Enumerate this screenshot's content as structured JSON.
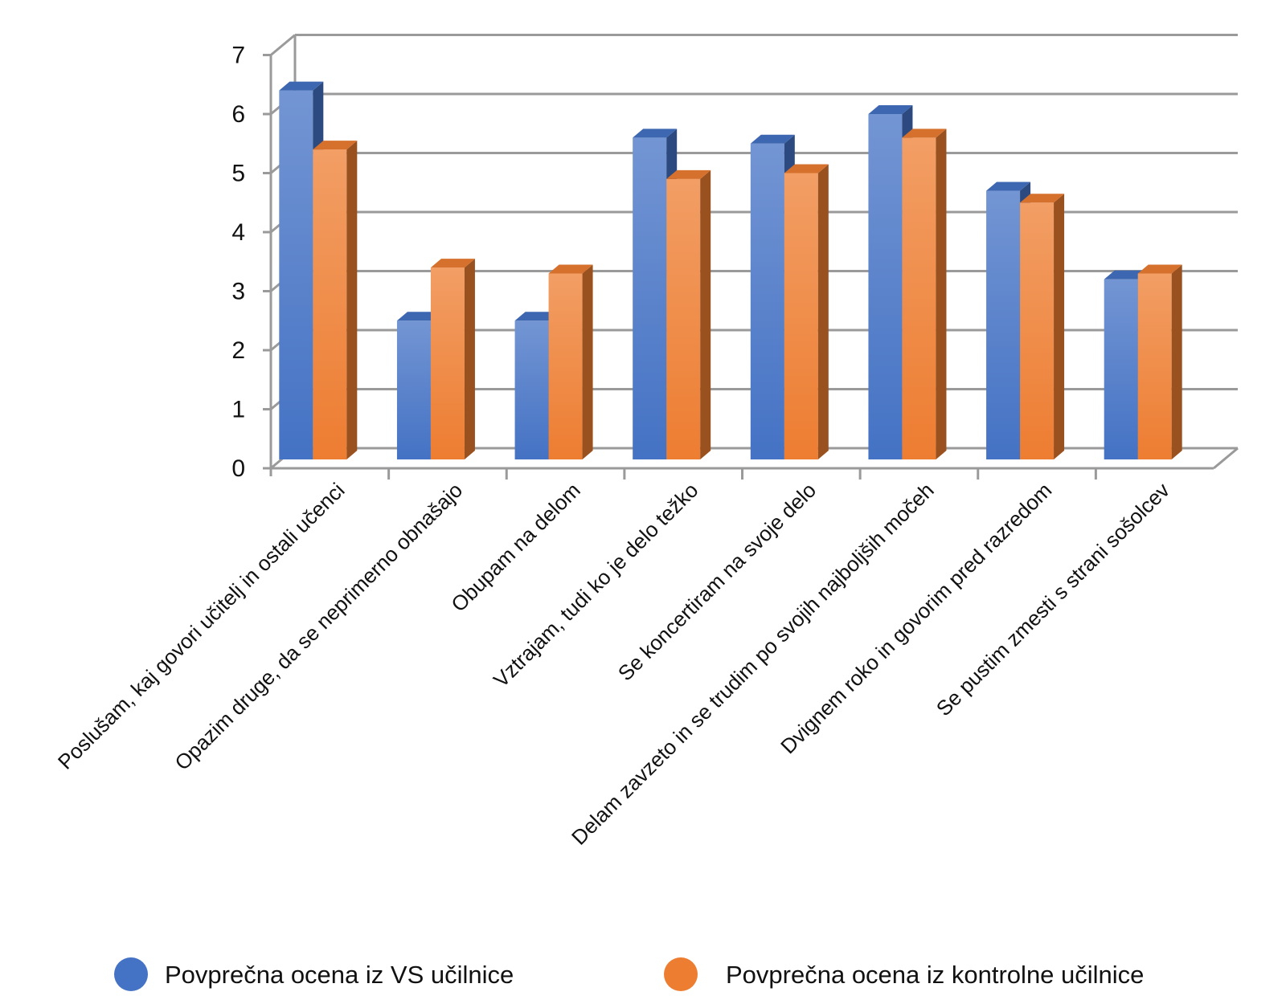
{
  "chart_data": {
    "type": "bar",
    "categories": [
      "Poslušam, kaj govori učitelj in ostali učenci",
      "Opazim druge, da se neprimerno obnašajo",
      "Obupam na delom",
      "Vztrajam, tudi ko je delo težko",
      "Se koncertiram na svoje delo",
      "Delam zavzeto in se trudim po svojih najboljših močeh",
      "Dvignem roko in govorim pred razredom",
      "Se pustim zmesti s strani sošolcev"
    ],
    "series": [
      {
        "name": "Povprečna ocena iz VS učilnice",
        "color": "#4472C4",
        "values": [
          6.4,
          2.5,
          2.5,
          5.6,
          5.5,
          6.0,
          4.7,
          3.2
        ]
      },
      {
        "name": "Povprečna ocena iz kontrolne učilnice",
        "color": "#ED7D31",
        "values": [
          5.4,
          3.4,
          3.3,
          4.9,
          5.0,
          5.6,
          4.5,
          3.3
        ]
      }
    ],
    "yticks": [
      "0",
      "1",
      "2",
      "3",
      "4",
      "5",
      "6",
      "7"
    ],
    "ylim": [
      0,
      7
    ],
    "grid": true,
    "legend_position": "bottom",
    "style": "3d-clustered-column"
  }
}
